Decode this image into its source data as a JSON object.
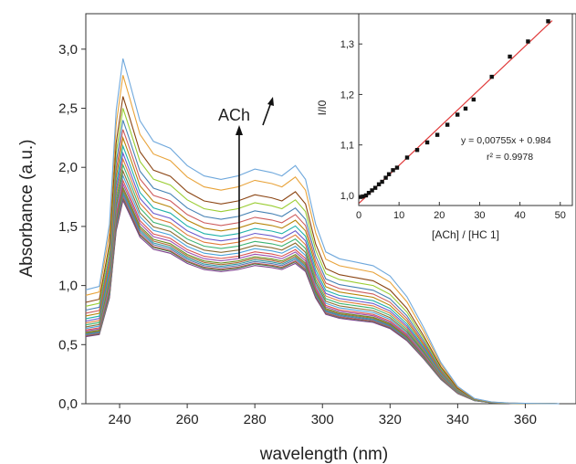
{
  "chart_data": [
    {
      "type": "line",
      "xlabel": "wavelength (nm)",
      "ylabel": "Absorbance (a.u.)",
      "xlim": [
        230,
        375
      ],
      "ylim": [
        0.0,
        3.3
      ],
      "x_ticks": [
        "240",
        "260",
        "280",
        "300",
        "320",
        "340",
        "360"
      ],
      "x_tick_values": [
        240,
        260,
        280,
        300,
        320,
        340,
        360
      ],
      "y_ticks": [
        "0,0",
        "0,5",
        "1,0",
        "1,5",
        "2,0",
        "2,5",
        "3,0"
      ],
      "y_tick_values": [
        0.0,
        0.5,
        1.0,
        1.5,
        2.0,
        2.5,
        3.0
      ],
      "grid": false,
      "annotation": "ACh",
      "x": [
        230,
        234,
        237,
        239,
        241,
        243,
        246,
        250,
        255,
        260,
        265,
        270,
        275,
        280,
        285,
        288,
        292,
        295,
        298,
        301,
        305,
        310,
        315,
        320,
        325,
        330,
        335,
        340,
        345,
        350,
        355,
        360,
        365,
        370
      ],
      "shape": [
        0.33,
        0.34,
        0.52,
        0.85,
        1.0,
        0.93,
        0.82,
        0.76,
        0.74,
        0.69,
        0.66,
        0.65,
        0.66,
        0.68,
        0.67,
        0.66,
        0.69,
        0.65,
        0.52,
        0.44,
        0.42,
        0.41,
        0.4,
        0.37,
        0.31,
        0.22,
        0.12,
        0.05,
        0.015,
        0.005,
        0.002,
        0.001,
        0.0005,
        0.0
      ],
      "peak_values": [
        1.72,
        1.74,
        1.75,
        1.77,
        1.79,
        1.81,
        1.83,
        1.86,
        1.89,
        1.93,
        1.97,
        2.02,
        2.07,
        2.12,
        2.18,
        2.25,
        2.32,
        2.4,
        2.5,
        2.6,
        2.78,
        2.92
      ],
      "colors": [
        "#7b3f8c",
        "#3d7a3d",
        "#c05a5a",
        "#5a7ab0",
        "#2f9aa0",
        "#b06a3a",
        "#6b8e23",
        "#9a4fb0",
        "#d9534f",
        "#4aa3d9",
        "#8c6d31",
        "#3cb371",
        "#e07b39",
        "#6a5acd",
        "#20b2aa",
        "#b8860b",
        "#cd5c5c",
        "#4682b4",
        "#9acd32",
        "#8b4513",
        "#e8a33a",
        "#6fa8dc"
      ]
    },
    {
      "type": "scatter",
      "xlabel": "[ACh] / [HC 1]",
      "ylabel": "I/I0",
      "xlim": [
        0,
        53
      ],
      "ylim": [
        0.98,
        1.36
      ],
      "x_ticks": [
        "0",
        "10",
        "20",
        "30",
        "40",
        "50"
      ],
      "x_tick_values": [
        0,
        10,
        20,
        30,
        40,
        50
      ],
      "y_ticks": [
        "1,0",
        "1,1",
        "1,2",
        "1,3"
      ],
      "y_tick_values": [
        1.0,
        1.1,
        1.2,
        1.3
      ],
      "x": [
        0.5,
        1,
        1.8,
        2.5,
        3.3,
        4.1,
        5,
        5.8,
        6.7,
        7.5,
        8.5,
        9.5,
        12,
        14.5,
        17,
        19.5,
        22,
        24.5,
        26.5,
        28.5,
        33,
        37.5,
        42,
        47
      ],
      "y": [
        0.997,
        0.998,
        1.0,
        1.005,
        1.01,
        1.015,
        1.022,
        1.027,
        1.035,
        1.042,
        1.05,
        1.055,
        1.075,
        1.09,
        1.105,
        1.12,
        1.14,
        1.16,
        1.172,
        1.19,
        1.235,
        1.275,
        1.305,
        1.345
      ],
      "fit": {
        "slope": 0.00755,
        "intercept": 0.984,
        "line_color": "#e03a3a"
      },
      "equation": "y = 0,00755x + 0.984",
      "r2": "r² = 0.9978",
      "marker_color": "#111111"
    }
  ]
}
